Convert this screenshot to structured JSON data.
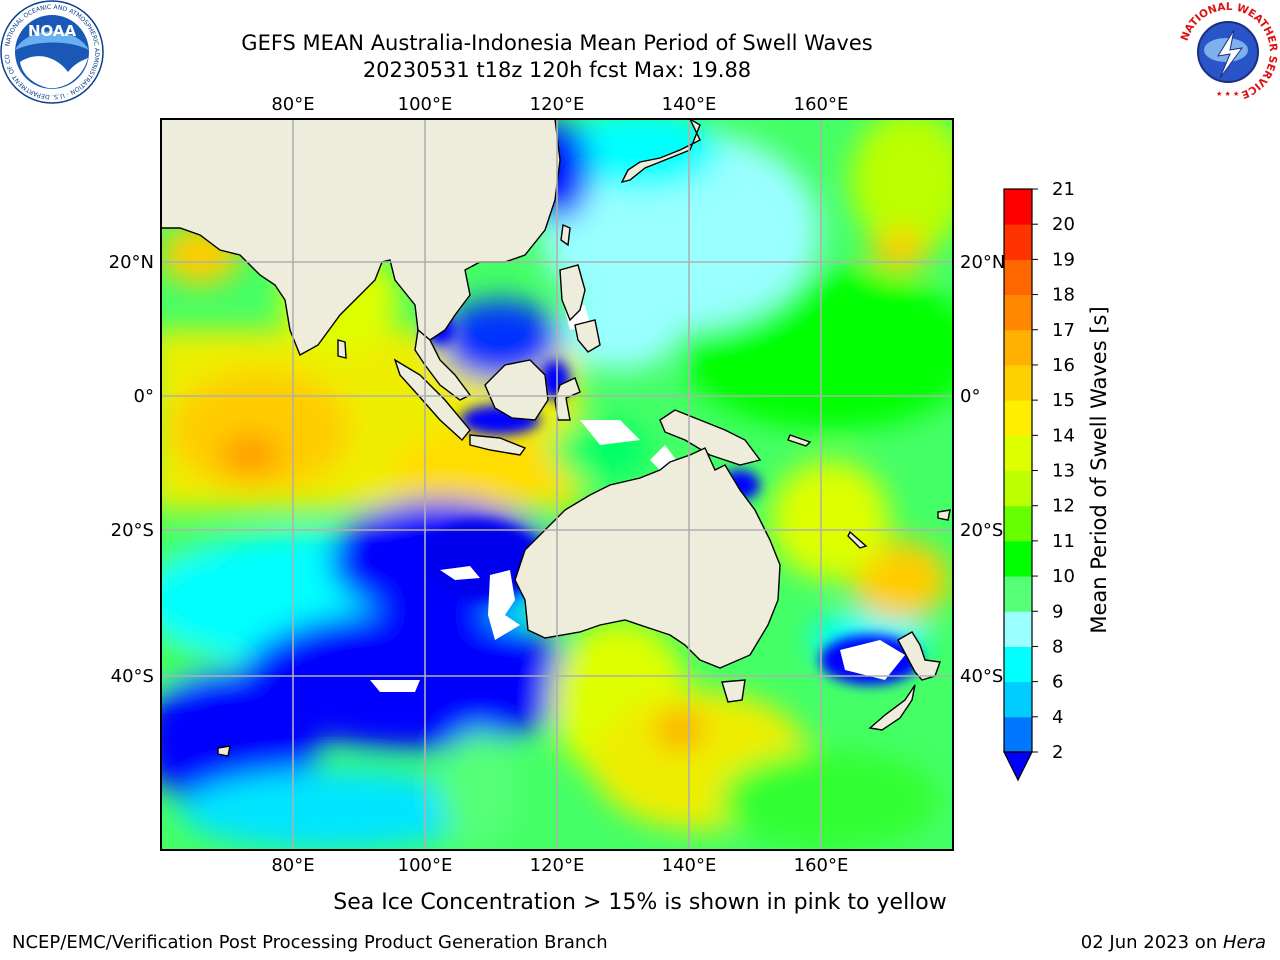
{
  "header": {
    "title_line1": "GEFS MEAN Australia-Indonesia Mean Period of Swell Waves",
    "title_line2": "20230531 t18z 120h fcst   Max: 19.88"
  },
  "map": {
    "lon_labels": [
      "80°E",
      "100°E",
      "120°E",
      "140°E",
      "160°E"
    ],
    "lat_labels": [
      "20°N",
      "0°",
      "20°S",
      "40°S"
    ],
    "colors": {
      "land": "#eeeddc",
      "grid": "#b0b0b0",
      "sea_ice_mask": "#ffffff"
    }
  },
  "colorbar": {
    "label": "Mean Period of Swell Waves [s]",
    "ticks": [
      "2",
      "4",
      "6",
      "8",
      "9",
      "10",
      "11",
      "12",
      "13",
      "14",
      "15",
      "16",
      "17",
      "18",
      "19",
      "20",
      "21"
    ],
    "colors": [
      "#0000ff",
      "#0077ff",
      "#00ccff",
      "#00ffff",
      "#99ffff",
      "#55ff77",
      "#00ff00",
      "#66ff00",
      "#bbff00",
      "#ddff00",
      "#ffee00",
      "#ffd000",
      "#ffb000",
      "#ff8800",
      "#ff6600",
      "#ff3300",
      "#ff0000"
    ]
  },
  "note": "Sea Ice Concentration > 15% is shown in pink to yellow",
  "footer": {
    "left": "NCEP/EMC/Verification Post Processing Product Generation Branch",
    "right_date": "02 Jun 2023 on ",
    "right_host": "Hera"
  },
  "logos": {
    "noaa": {
      "text": "NOAA",
      "ring_text": "NATIONAL OCEANIC AND ATMOSPHERIC ADMINISTRATION · U.S. DEPARTMENT OF COMMERCE"
    },
    "nws": {
      "ring_text": "NATIONAL WEATHER SERVICE"
    }
  }
}
